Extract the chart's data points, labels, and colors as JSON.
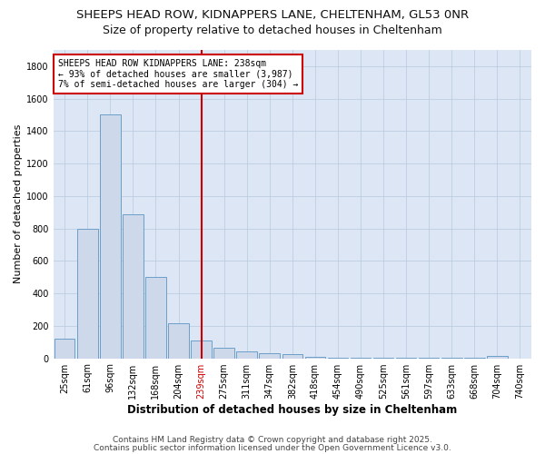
{
  "title_line1": "SHEEPS HEAD ROW, KIDNAPPERS LANE, CHELTENHAM, GL53 0NR",
  "title_line2": "Size of property relative to detached houses in Cheltenham",
  "xlabel": "Distribution of detached houses by size in Cheltenham",
  "ylabel": "Number of detached properties",
  "categories": [
    "25sqm",
    "61sqm",
    "96sqm",
    "132sqm",
    "168sqm",
    "204sqm",
    "239sqm",
    "275sqm",
    "311sqm",
    "347sqm",
    "382sqm",
    "418sqm",
    "454sqm",
    "490sqm",
    "525sqm",
    "561sqm",
    "597sqm",
    "633sqm",
    "668sqm",
    "704sqm",
    "740sqm"
  ],
  "values": [
    120,
    800,
    1500,
    890,
    500,
    215,
    110,
    65,
    40,
    30,
    25,
    8,
    6,
    5,
    5,
    4,
    4,
    4,
    4,
    15,
    0
  ],
  "bar_color": "#cdd9ea",
  "bar_edge_color": "#6b9ec8",
  "plot_bg_color": "#dce6f5",
  "fig_bg_color": "#ffffff",
  "vline_x_index": 6,
  "vline_color": "#cc0000",
  "annotation_text": "SHEEPS HEAD ROW KIDNAPPERS LANE: 238sqm\n← 93% of detached houses are smaller (3,987)\n7% of semi-detached houses are larger (304) →",
  "annotation_box_color": "#ffffff",
  "annotation_box_edge_color": "#cc0000",
  "ylim": [
    0,
    1900
  ],
  "yticks": [
    0,
    200,
    400,
    600,
    800,
    1000,
    1200,
    1400,
    1600,
    1800
  ],
  "footer_line1": "Contains HM Land Registry data © Crown copyright and database right 2025.",
  "footer_line2": "Contains public sector information licensed under the Open Government Licence v3.0.",
  "title_fontsize": 9.5,
  "subtitle_fontsize": 9,
  "tick_fontsize": 7,
  "ylabel_fontsize": 8,
  "xlabel_fontsize": 8.5,
  "annotation_fontsize": 7,
  "footer_fontsize": 6.5
}
